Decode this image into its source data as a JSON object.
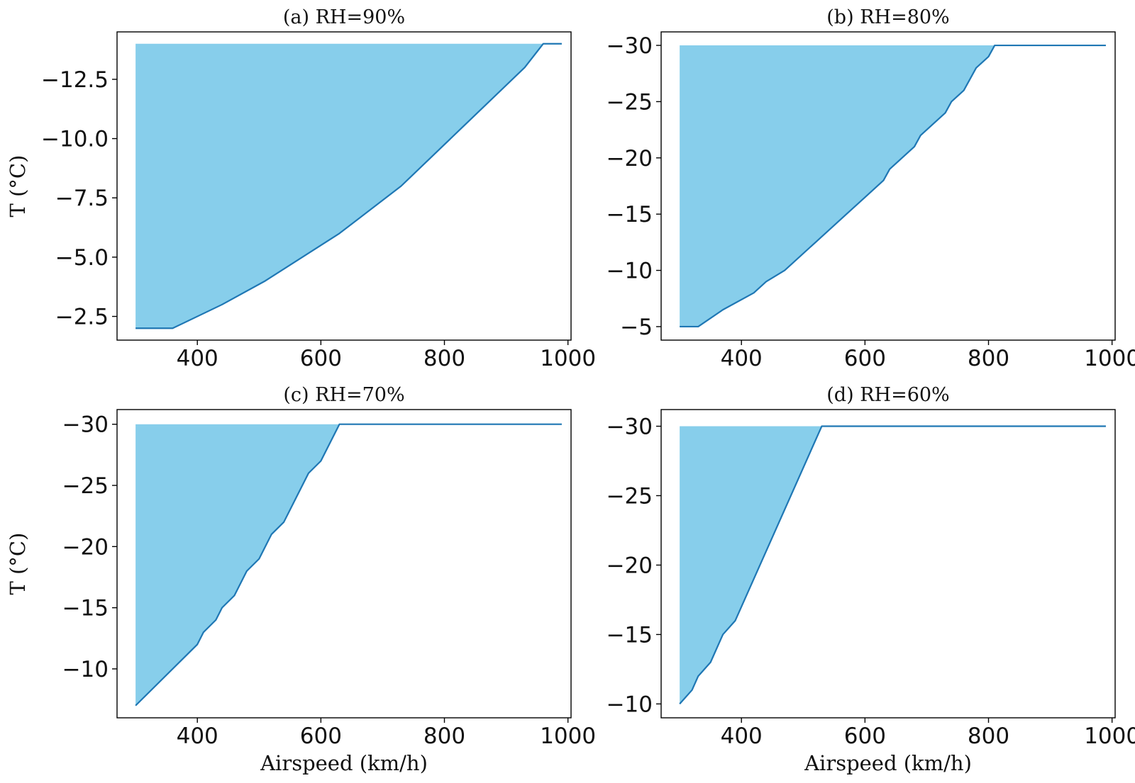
{
  "chart_data": [
    {
      "type": "area",
      "title": "(a) RH=90%",
      "xlabel": "",
      "ylabel": "T (°C)",
      "xlim": [
        270,
        1005
      ],
      "ylim": [
        -1.5,
        -14.5
      ],
      "xticks": [
        400,
        600,
        800,
        1000
      ],
      "xtick_labels": [
        "400",
        "600",
        "800",
        "1000"
      ],
      "yticks": [
        -12.5,
        -10.0,
        -7.5,
        -5.0,
        -2.5
      ],
      "ytick_labels": [
        "−12.5",
        "−10.0",
        "−7.5",
        "−5.0",
        "−2.5"
      ],
      "grid": false,
      "fill_color": "#87ceeb",
      "line_color": "#1f77b4",
      "fill_top": -14,
      "x": [
        300,
        360,
        440,
        510,
        630,
        730,
        830,
        930,
        960,
        990
      ],
      "y": [
        -2,
        -2,
        -3,
        -4,
        -6,
        -8,
        -10.5,
        -13,
        -14,
        -14
      ]
    },
    {
      "type": "area",
      "title": "(b) RH=80%",
      "xlabel": "",
      "ylabel": "",
      "xlim": [
        270,
        1005
      ],
      "ylim": [
        -3.8,
        -31.2
      ],
      "xticks": [
        400,
        600,
        800,
        1000
      ],
      "xtick_labels": [
        "400",
        "600",
        "800",
        "1000"
      ],
      "yticks": [
        -30,
        -25,
        -20,
        -15,
        -10,
        -5
      ],
      "ytick_labels": [
        "−30",
        "−25",
        "−20",
        "−15",
        "−10",
        "−5"
      ],
      "grid": false,
      "fill_color": "#87ceeb",
      "line_color": "#1f77b4",
      "fill_top": -30,
      "x": [
        300,
        330,
        370,
        420,
        440,
        470,
        520,
        570,
        600,
        630,
        640,
        660,
        680,
        690,
        710,
        730,
        740,
        760,
        780,
        800,
        810,
        990
      ],
      "y": [
        -5,
        -5,
        -6.5,
        -8,
        -9,
        -10,
        -12.5,
        -15,
        -16.5,
        -18,
        -19,
        -20,
        -21,
        -22,
        -23,
        -24,
        -25,
        -26,
        -28,
        -29,
        -30,
        -30
      ]
    },
    {
      "type": "area",
      "title": "(c) RH=70%",
      "xlabel": "Airspeed (km/h)",
      "ylabel": "T (°C)",
      "xlim": [
        270,
        1005
      ],
      "ylim": [
        -6.0,
        -31.2
      ],
      "xticks": [
        400,
        600,
        800,
        1000
      ],
      "xtick_labels": [
        "400",
        "600",
        "800",
        "1000"
      ],
      "yticks": [
        -30,
        -25,
        -20,
        -15,
        -10
      ],
      "ytick_labels": [
        "−30",
        "−25",
        "−20",
        "−15",
        "−10"
      ],
      "grid": false,
      "fill_color": "#87ceeb",
      "line_color": "#1f77b4",
      "fill_top": -30,
      "x": [
        300,
        400,
        410,
        430,
        440,
        460,
        480,
        500,
        520,
        540,
        560,
        580,
        600,
        630,
        990
      ],
      "y": [
        -7,
        -12,
        -13,
        -14,
        -15,
        -16,
        -18,
        -19,
        -21,
        -22,
        -24,
        -26,
        -27,
        -30,
        -30
      ]
    },
    {
      "type": "area",
      "title": "(d) RH=60%",
      "xlabel": "Airspeed (km/h)",
      "ylabel": "",
      "xlim": [
        270,
        1005
      ],
      "ylim": [
        -9.0,
        -31.2
      ],
      "xticks": [
        400,
        600,
        800,
        1000
      ],
      "xtick_labels": [
        "400",
        "600",
        "800",
        "1000"
      ],
      "yticks": [
        -30,
        -25,
        -20,
        -15,
        -10
      ],
      "ytick_labels": [
        "−30",
        "−25",
        "−20",
        "−15",
        "−10"
      ],
      "grid": false,
      "fill_color": "#87ceeb",
      "line_color": "#1f77b4",
      "fill_top": -30,
      "x": [
        300,
        320,
        330,
        350,
        370,
        390,
        530,
        990
      ],
      "y": [
        -10,
        -11,
        -12,
        -13,
        -15,
        -16,
        -30,
        -30
      ]
    }
  ]
}
